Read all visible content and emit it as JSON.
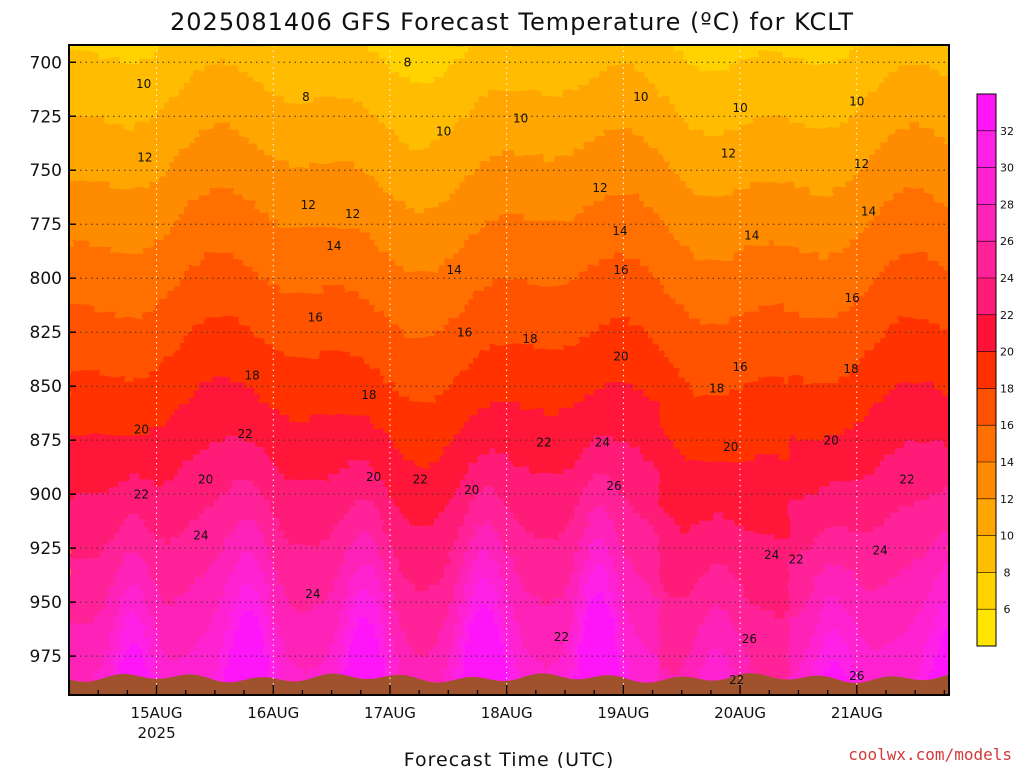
{
  "chart_data": {
    "type": "heatmap",
    "title": "2025081406 GFS Forecast Temperature (ºC) for KCLT",
    "xlabel": "Forecast Time (UTC)",
    "ylabel": "",
    "credit": "coolwx.com/models",
    "y_ticks": [
      "700",
      "725",
      "750",
      "775",
      "800",
      "825",
      "850",
      "875",
      "900",
      "925",
      "950",
      "975"
    ],
    "x_ticks": [
      "15AUG",
      "16AUG",
      "17AUG",
      "18AUG",
      "19AUG",
      "20AUG",
      "21AUG"
    ],
    "x_year": "2025",
    "y_axis": "pressure (hPa), inverted",
    "ylim": [
      692,
      993
    ],
    "x_range_days": [
      14.25,
      21.79
    ],
    "grid": true,
    "colorbar_ticks": [
      "6",
      "8",
      "10",
      "12",
      "14",
      "16",
      "18",
      "20",
      "22",
      "24",
      "26",
      "28",
      "30",
      "32"
    ],
    "colorbar_levels": [
      4,
      34
    ],
    "contour_interval": 2,
    "colors": {
      "4": "#ffe500",
      "6": "#ffd200",
      "8": "#ffbc00",
      "10": "#ffa600",
      "12": "#ff8c00",
      "14": "#ff7000",
      "16": "#ff5200",
      "18": "#ff3000",
      "20": "#ff1238",
      "22": "#ff1c78",
      "24": "#ff2298",
      "26": "#ff24b8",
      "28": "#ff22d0",
      "30": "#ff20e6",
      "32": "#ff16f8",
      "terrain": "#a0522d"
    },
    "contour_labels": [
      {
        "v": "10",
        "x": 14.89,
        "p": 712
      },
      {
        "v": "8",
        "x": 16.28,
        "p": 718
      },
      {
        "v": "8",
        "x": 17.15,
        "p": 702
      },
      {
        "v": "10",
        "x": 17.46,
        "p": 734
      },
      {
        "v": "10",
        "x": 18.12,
        "p": 728
      },
      {
        "v": "10",
        "x": 19.15,
        "p": 718
      },
      {
        "v": "10",
        "x": 20.0,
        "p": 723
      },
      {
        "v": "10",
        "x": 21.0,
        "p": 720
      },
      {
        "v": "12",
        "x": 14.9,
        "p": 746
      },
      {
        "v": "12",
        "x": 16.3,
        "p": 768
      },
      {
        "v": "12",
        "x": 16.68,
        "p": 772
      },
      {
        "v": "12",
        "x": 18.8,
        "p": 760
      },
      {
        "v": "12",
        "x": 19.9,
        "p": 744
      },
      {
        "v": "12",
        "x": 21.04,
        "p": 749
      },
      {
        "v": "14",
        "x": 16.52,
        "p": 787
      },
      {
        "v": "14",
        "x": 17.55,
        "p": 798
      },
      {
        "v": "14",
        "x": 18.97,
        "p": 780
      },
      {
        "v": "14",
        "x": 20.1,
        "p": 782
      },
      {
        "v": "14",
        "x": 21.1,
        "p": 771
      },
      {
        "v": "16",
        "x": 16.36,
        "p": 820
      },
      {
        "v": "16",
        "x": 17.64,
        "p": 827
      },
      {
        "v": "16",
        "x": 18.98,
        "p": 798
      },
      {
        "v": "16",
        "x": 20.0,
        "p": 843
      },
      {
        "v": "16",
        "x": 20.96,
        "p": 811
      },
      {
        "v": "18",
        "x": 15.82,
        "p": 847
      },
      {
        "v": "18",
        "x": 16.82,
        "p": 856
      },
      {
        "v": "18",
        "x": 18.2,
        "p": 830
      },
      {
        "v": "18",
        "x": 19.8,
        "p": 853
      },
      {
        "v": "18",
        "x": 20.95,
        "p": 844
      },
      {
        "v": "20",
        "x": 14.87,
        "p": 872
      },
      {
        "v": "20",
        "x": 15.42,
        "p": 895
      },
      {
        "v": "20",
        "x": 16.86,
        "p": 894
      },
      {
        "v": "20",
        "x": 17.7,
        "p": 900
      },
      {
        "v": "20",
        "x": 18.98,
        "p": 838
      },
      {
        "v": "20",
        "x": 19.92,
        "p": 880
      },
      {
        "v": "20",
        "x": 20.78,
        "p": 877
      },
      {
        "v": "22",
        "x": 14.87,
        "p": 902
      },
      {
        "v": "22",
        "x": 15.76,
        "p": 874
      },
      {
        "v": "22",
        "x": 17.26,
        "p": 895
      },
      {
        "v": "22",
        "x": 18.32,
        "p": 878
      },
      {
        "v": "22",
        "x": 18.47,
        "p": 968
      },
      {
        "v": "22",
        "x": 19.97,
        "p": 988
      },
      {
        "v": "22",
        "x": 20.48,
        "p": 932
      },
      {
        "v": "22",
        "x": 21.43,
        "p": 895
      },
      {
        "v": "24",
        "x": 15.38,
        "p": 921
      },
      {
        "v": "24",
        "x": 16.34,
        "p": 948
      },
      {
        "v": "24",
        "x": 18.82,
        "p": 878
      },
      {
        "v": "24",
        "x": 20.27,
        "p": 930
      },
      {
        "v": "24",
        "x": 21.2,
        "p": 928
      },
      {
        "v": "26",
        "x": 18.92,
        "p": 898
      },
      {
        "v": "26",
        "x": 20.08,
        "p": 969
      },
      {
        "v": "26",
        "x": 21.0,
        "p": 986
      }
    ]
  }
}
